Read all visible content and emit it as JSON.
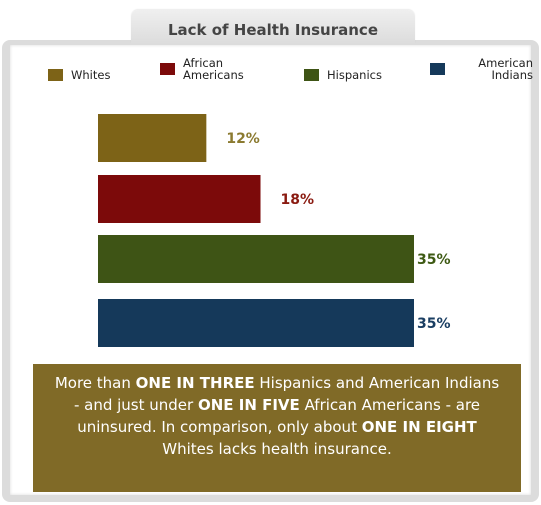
{
  "chart_data": {
    "type": "bar",
    "orientation": "horizontal",
    "title": "Lack of Health Insurance",
    "categories": [
      "Whites",
      "African Americans",
      "Hispanics",
      "American Indians"
    ],
    "values": [
      12,
      18,
      35,
      35
    ],
    "value_labels": [
      "12%",
      "18%",
      "35%",
      "35%"
    ],
    "colors": [
      "#7d6317",
      "#7c0a0a",
      "#3e5415",
      "#15395a"
    ],
    "label_colors": [
      "#8b7a30",
      "#8a1a10",
      "#3e5a14",
      "#1a3e62"
    ],
    "legend": [
      {
        "label": "Whites",
        "color": "#7d6317"
      },
      {
        "label": "African Americans",
        "color": "#7c0a0a"
      },
      {
        "label": "Hispanics",
        "color": "#3e5415"
      },
      {
        "label": "American Indians",
        "color": "#15395a"
      }
    ],
    "legend_position": "top",
    "xlim": [
      0,
      35
    ],
    "grid": false
  },
  "note": {
    "t1": "More than ",
    "b1": "ONE IN THREE",
    "t2": " Hispanics and American Indians - and just under ",
    "b2": "ONE IN FIVE",
    "t3": " African Americans - are uninsured.  In comparison, only about ",
    "b3": "ONE IN EIGHT",
    "t4": " Whites lacks health insurance."
  }
}
